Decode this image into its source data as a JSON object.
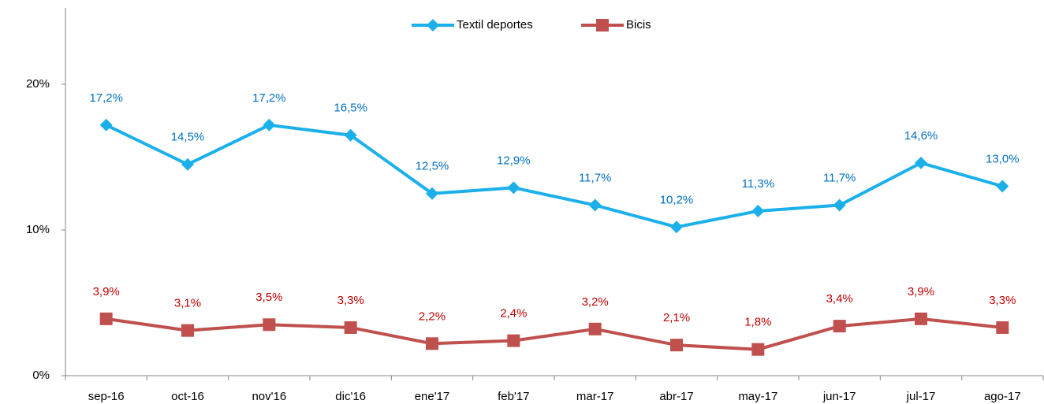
{
  "chart_data": {
    "type": "line",
    "categories": [
      "sep-16",
      "oct-16",
      "nov'16",
      "dic'16",
      "ene'17",
      "feb'17",
      "mar-17",
      "abr-17",
      "may-17",
      "jun-17",
      "jul-17",
      "ago-17"
    ],
    "series": [
      {
        "name": "Textil deportes",
        "color": "#1cb0ea",
        "label_color": "#0070c0",
        "marker": "diamond",
        "values": [
          17.2,
          14.5,
          17.2,
          16.5,
          12.5,
          12.9,
          11.7,
          10.2,
          11.3,
          11.7,
          14.6,
          13.0
        ],
        "value_labels": [
          "17,2%",
          "14,5%",
          "17,2%",
          "16,5%",
          "12,5%",
          "12,9%",
          "11,7%",
          "10,2%",
          "11,3%",
          "11,7%",
          "14,6%",
          "13,0%"
        ]
      },
      {
        "name": "Bicis",
        "color": "#c0504d",
        "label_color": "#c00000",
        "marker": "square",
        "values": [
          3.9,
          3.1,
          3.5,
          3.3,
          2.2,
          2.4,
          3.2,
          2.1,
          1.8,
          3.4,
          3.9,
          3.3
        ],
        "value_labels": [
          "3,9%",
          "3,1%",
          "3,5%",
          "3,3%",
          "2,2%",
          "2,4%",
          "3,2%",
          "2,1%",
          "1,8%",
          "3,4%",
          "3,9%",
          "3,3%"
        ]
      }
    ],
    "ylim": [
      0,
      25
    ],
    "yticks": [
      {
        "value": 0,
        "label": "0%"
      },
      {
        "value": 10,
        "label": "10%"
      },
      {
        "value": 20,
        "label": "20%"
      }
    ],
    "legend": "top",
    "grid": false
  }
}
